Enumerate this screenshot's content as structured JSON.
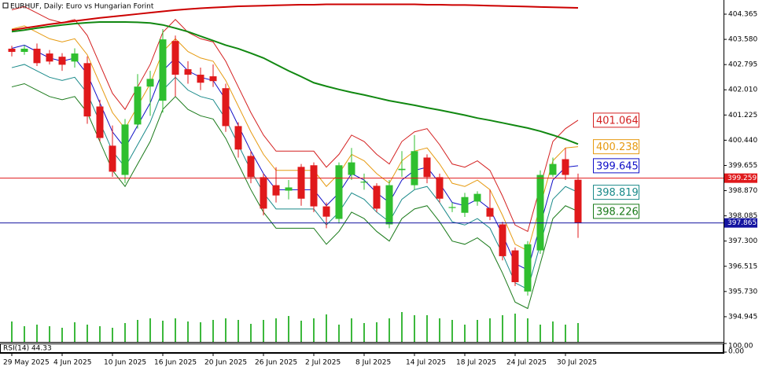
{
  "chart_data": {
    "type": "candlestick",
    "title": "EURHUF, Daily:  Euro vs Hungarian Forint",
    "categories": [
      "29 May 2025",
      null,
      null,
      null,
      "4 Jun 2025",
      null,
      null,
      null,
      "10 Jun 2025",
      null,
      null,
      null,
      "16 Jun 2025",
      null,
      null,
      null,
      "20 Jun 2025",
      null,
      null,
      null,
      "26 Jun 2025",
      null,
      null,
      null,
      "2 Jul 2025",
      null,
      null,
      null,
      "8 Jul 2025",
      null,
      null,
      null,
      "14 Jul 2025",
      null,
      null,
      null,
      "18 Jul 2025",
      null,
      null,
      null,
      "24 Jul 2025",
      null,
      null,
      null,
      "30 Jul 2025",
      null
    ],
    "open": [
      403.29,
      403.19,
      403.29,
      403.14,
      403.04,
      402.89,
      402.84,
      401.49,
      400.27,
      399.36,
      400.93,
      402.11,
      401.67,
      403.53,
      402.65,
      402.48,
      402.43,
      402.06,
      400.88,
      399.95,
      399.29,
      399.04,
      398.87,
      399.61,
      399.66,
      398.38,
      397.99,
      399.36,
      399.12,
      399.02,
      397.82,
      399.51,
      399.04,
      399.9,
      399.29,
      398.33,
      398.18,
      398.53,
      398.33,
      397.82,
      397.01,
      395.73,
      397.01,
      399.36,
      399.85,
      399.21
    ],
    "high": [
      403.38,
      403.4,
      403.45,
      403.25,
      403.15,
      403.3,
      403.05,
      401.7,
      400.9,
      401.1,
      402.5,
      402.6,
      403.9,
      403.7,
      402.9,
      402.7,
      402.8,
      402.2,
      401.0,
      400.1,
      399.4,
      399.6,
      399.2,
      399.7,
      399.75,
      398.5,
      399.75,
      400.2,
      399.4,
      399.1,
      399.2,
      400.1,
      400.6,
      400.0,
      399.4,
      398.5,
      398.8,
      398.85,
      398.9,
      397.9,
      397.1,
      397.3,
      399.5,
      399.9,
      400.2,
      399.4
    ],
    "low": [
      403.05,
      403.1,
      402.75,
      402.8,
      402.6,
      402.7,
      400.95,
      400.4,
      399.3,
      399.1,
      400.8,
      401.2,
      401.3,
      401.8,
      402.2,
      402.0,
      402.1,
      400.7,
      399.9,
      399.1,
      398.1,
      398.5,
      398.6,
      398.4,
      398.2,
      397.7,
      397.85,
      399.2,
      398.9,
      398.2,
      397.7,
      399.3,
      398.9,
      399.1,
      398.5,
      398.2,
      398.05,
      398.4,
      397.95,
      396.7,
      395.9,
      395.6,
      396.9,
      399.3,
      399.2,
      397.4
    ],
    "close": [
      403.19,
      403.29,
      402.84,
      402.89,
      402.79,
      403.14,
      401.18,
      400.51,
      399.46,
      400.93,
      402.11,
      402.35,
      403.58,
      402.48,
      402.48,
      402.23,
      402.28,
      400.88,
      400.15,
      399.29,
      398.31,
      398.72,
      398.97,
      398.62,
      398.38,
      398.06,
      399.66,
      399.75,
      399.15,
      398.31,
      399.04,
      399.55,
      400.1,
      399.29,
      398.62,
      398.36,
      398.67,
      398.77,
      398.06,
      396.83,
      396.02,
      397.2,
      399.36,
      399.7,
      399.36,
      397.86
    ],
    "up_color": "#2fbf2f",
    "down_color": "#e0191b",
    "volume": [
      26,
      20,
      22,
      20,
      18,
      25,
      22,
      20,
      18,
      24,
      28,
      30,
      27,
      30,
      26,
      25,
      28,
      30,
      28,
      23,
      28,
      30,
      33,
      27,
      30,
      35,
      22,
      30,
      24,
      25,
      30,
      38,
      34,
      34,
      30,
      28,
      22,
      28,
      30,
      34,
      36,
      30,
      22,
      26,
      22,
      24
    ],
    "volume_color": "#3cb83c",
    "vlim": [
      0,
      100
    ],
    "moving_averages": [
      {
        "color": "#cc0000",
        "values": [
          403.87,
          403.93,
          403.99,
          404.05,
          404.1,
          404.15,
          404.2,
          404.25,
          404.29,
          404.33,
          404.37,
          404.41,
          404.45,
          404.49,
          404.52,
          404.55,
          404.57,
          404.59,
          404.61,
          404.62,
          404.63,
          404.64,
          404.65,
          404.66,
          404.66,
          404.67,
          404.67,
          404.67,
          404.67,
          404.67,
          404.67,
          404.67,
          404.67,
          404.66,
          404.66,
          404.65,
          404.65,
          404.64,
          404.63,
          404.62,
          404.61,
          404.6,
          404.59,
          404.58,
          404.57,
          404.56
        ]
      },
      {
        "color": "#118811",
        "values": [
          403.82,
          403.87,
          403.93,
          403.98,
          404.03,
          404.07,
          404.1,
          404.12,
          404.12,
          404.12,
          404.11,
          404.09,
          404.03,
          403.93,
          403.82,
          403.68,
          403.54,
          403.4,
          403.29,
          403.15,
          403.0,
          402.8,
          402.6,
          402.42,
          402.23,
          402.12,
          402.02,
          401.93,
          401.85,
          401.76,
          401.67,
          401.6,
          401.53,
          401.45,
          401.38,
          401.3,
          401.22,
          401.13,
          401.06,
          400.98,
          400.9,
          400.82,
          400.72,
          400.6,
          400.47,
          400.32
        ]
      }
    ],
    "bands": [
      {
        "color": "#d42020",
        "values": [
          404.5,
          404.6,
          404.4,
          404.2,
          404.1,
          404.2,
          403.7,
          402.8,
          401.9,
          401.4,
          402.1,
          402.8,
          403.8,
          404.2,
          403.8,
          403.6,
          403.5,
          402.9,
          402.1,
          401.3,
          400.6,
          400.1,
          400.1,
          400.1,
          400.1,
          399.6,
          400.0,
          400.6,
          400.4,
          400.0,
          399.7,
          400.4,
          400.7,
          400.8,
          400.3,
          399.7,
          399.6,
          399.8,
          399.5,
          398.7,
          397.8,
          397.6,
          399.0,
          400.4,
          400.8,
          401.064
        ]
      },
      {
        "color": "#e69a10",
        "values": [
          403.9,
          404.0,
          403.8,
          403.6,
          403.5,
          403.6,
          403.1,
          402.2,
          401.3,
          400.8,
          401.5,
          402.2,
          403.2,
          403.6,
          403.2,
          403.0,
          402.9,
          402.3,
          401.5,
          400.7,
          400.0,
          399.5,
          399.5,
          399.5,
          399.5,
          399.0,
          399.4,
          400.0,
          399.8,
          399.4,
          399.1,
          399.8,
          400.1,
          400.2,
          399.7,
          399.1,
          399.0,
          399.2,
          398.9,
          398.1,
          397.2,
          397.0,
          398.4,
          399.8,
          400.2,
          400.238
        ]
      },
      {
        "color": "#1010c8",
        "values": [
          403.3,
          403.4,
          403.2,
          403.0,
          402.9,
          403.0,
          402.5,
          401.6,
          400.7,
          400.2,
          400.9,
          401.6,
          402.6,
          403.0,
          402.6,
          402.4,
          402.3,
          401.7,
          400.9,
          400.1,
          399.4,
          398.9,
          398.9,
          398.9,
          398.9,
          398.4,
          398.8,
          399.4,
          399.2,
          398.8,
          398.5,
          399.2,
          399.5,
          399.6,
          399.1,
          398.5,
          398.4,
          398.6,
          398.3,
          397.5,
          396.6,
          396.4,
          397.8,
          399.2,
          399.6,
          399.645
        ]
      },
      {
        "color": "#1a8a8a",
        "values": [
          402.7,
          402.8,
          402.6,
          402.4,
          402.3,
          402.4,
          401.9,
          401.0,
          400.1,
          399.6,
          400.3,
          401.0,
          402.0,
          402.4,
          402.0,
          401.8,
          401.7,
          401.1,
          400.3,
          399.5,
          398.8,
          398.3,
          398.3,
          398.3,
          398.3,
          397.8,
          398.2,
          398.8,
          398.6,
          398.2,
          397.9,
          398.6,
          398.9,
          399.0,
          398.5,
          397.9,
          397.8,
          398.0,
          397.7,
          396.9,
          396.0,
          395.8,
          397.2,
          398.6,
          399.0,
          398.819
        ]
      },
      {
        "color": "#1a7a1a",
        "values": [
          402.1,
          402.2,
          402.0,
          401.8,
          401.7,
          401.8,
          401.3,
          400.4,
          399.5,
          399.0,
          399.7,
          400.4,
          401.4,
          401.8,
          401.4,
          401.2,
          401.1,
          400.5,
          399.7,
          398.9,
          398.2,
          397.7,
          397.7,
          397.7,
          397.7,
          397.2,
          397.6,
          398.2,
          398.0,
          397.6,
          397.3,
          398.0,
          398.3,
          398.4,
          397.9,
          397.3,
          397.2,
          397.4,
          397.1,
          396.3,
          395.4,
          395.2,
          396.6,
          398.0,
          398.4,
          398.226
        ]
      }
    ],
    "price_lines": [
      {
        "value": 399.259,
        "color": "#e0191b"
      },
      {
        "value": 397.865,
        "color": "#1414a0"
      }
    ],
    "ylim": [
      394.16,
      404.757
    ],
    "yticks": [
      404.365,
      {
        "value": 403.58,
        "label": "403.580"
      },
      402.795,
      {
        "value": 402.01,
        "label": "402.010"
      },
      401.225,
      {
        "value": 400.44,
        "label": "400.440"
      },
      399.655,
      {
        "value": 398.87,
        "label": "398.870"
      },
      398.085,
      {
        "value": 397.3,
        "label": "397.300"
      },
      396.515,
      {
        "value": 395.73,
        "label": "395.730"
      },
      394.945
    ],
    "rsi_label": "RSI(14) 44.33",
    "rsi_lim": [
      0,
      100
    ],
    "rsi_ticks": [
      {
        "value": 100,
        "label": "100.00"
      },
      {
        "value": 0,
        "label": "0.00"
      }
    ]
  }
}
